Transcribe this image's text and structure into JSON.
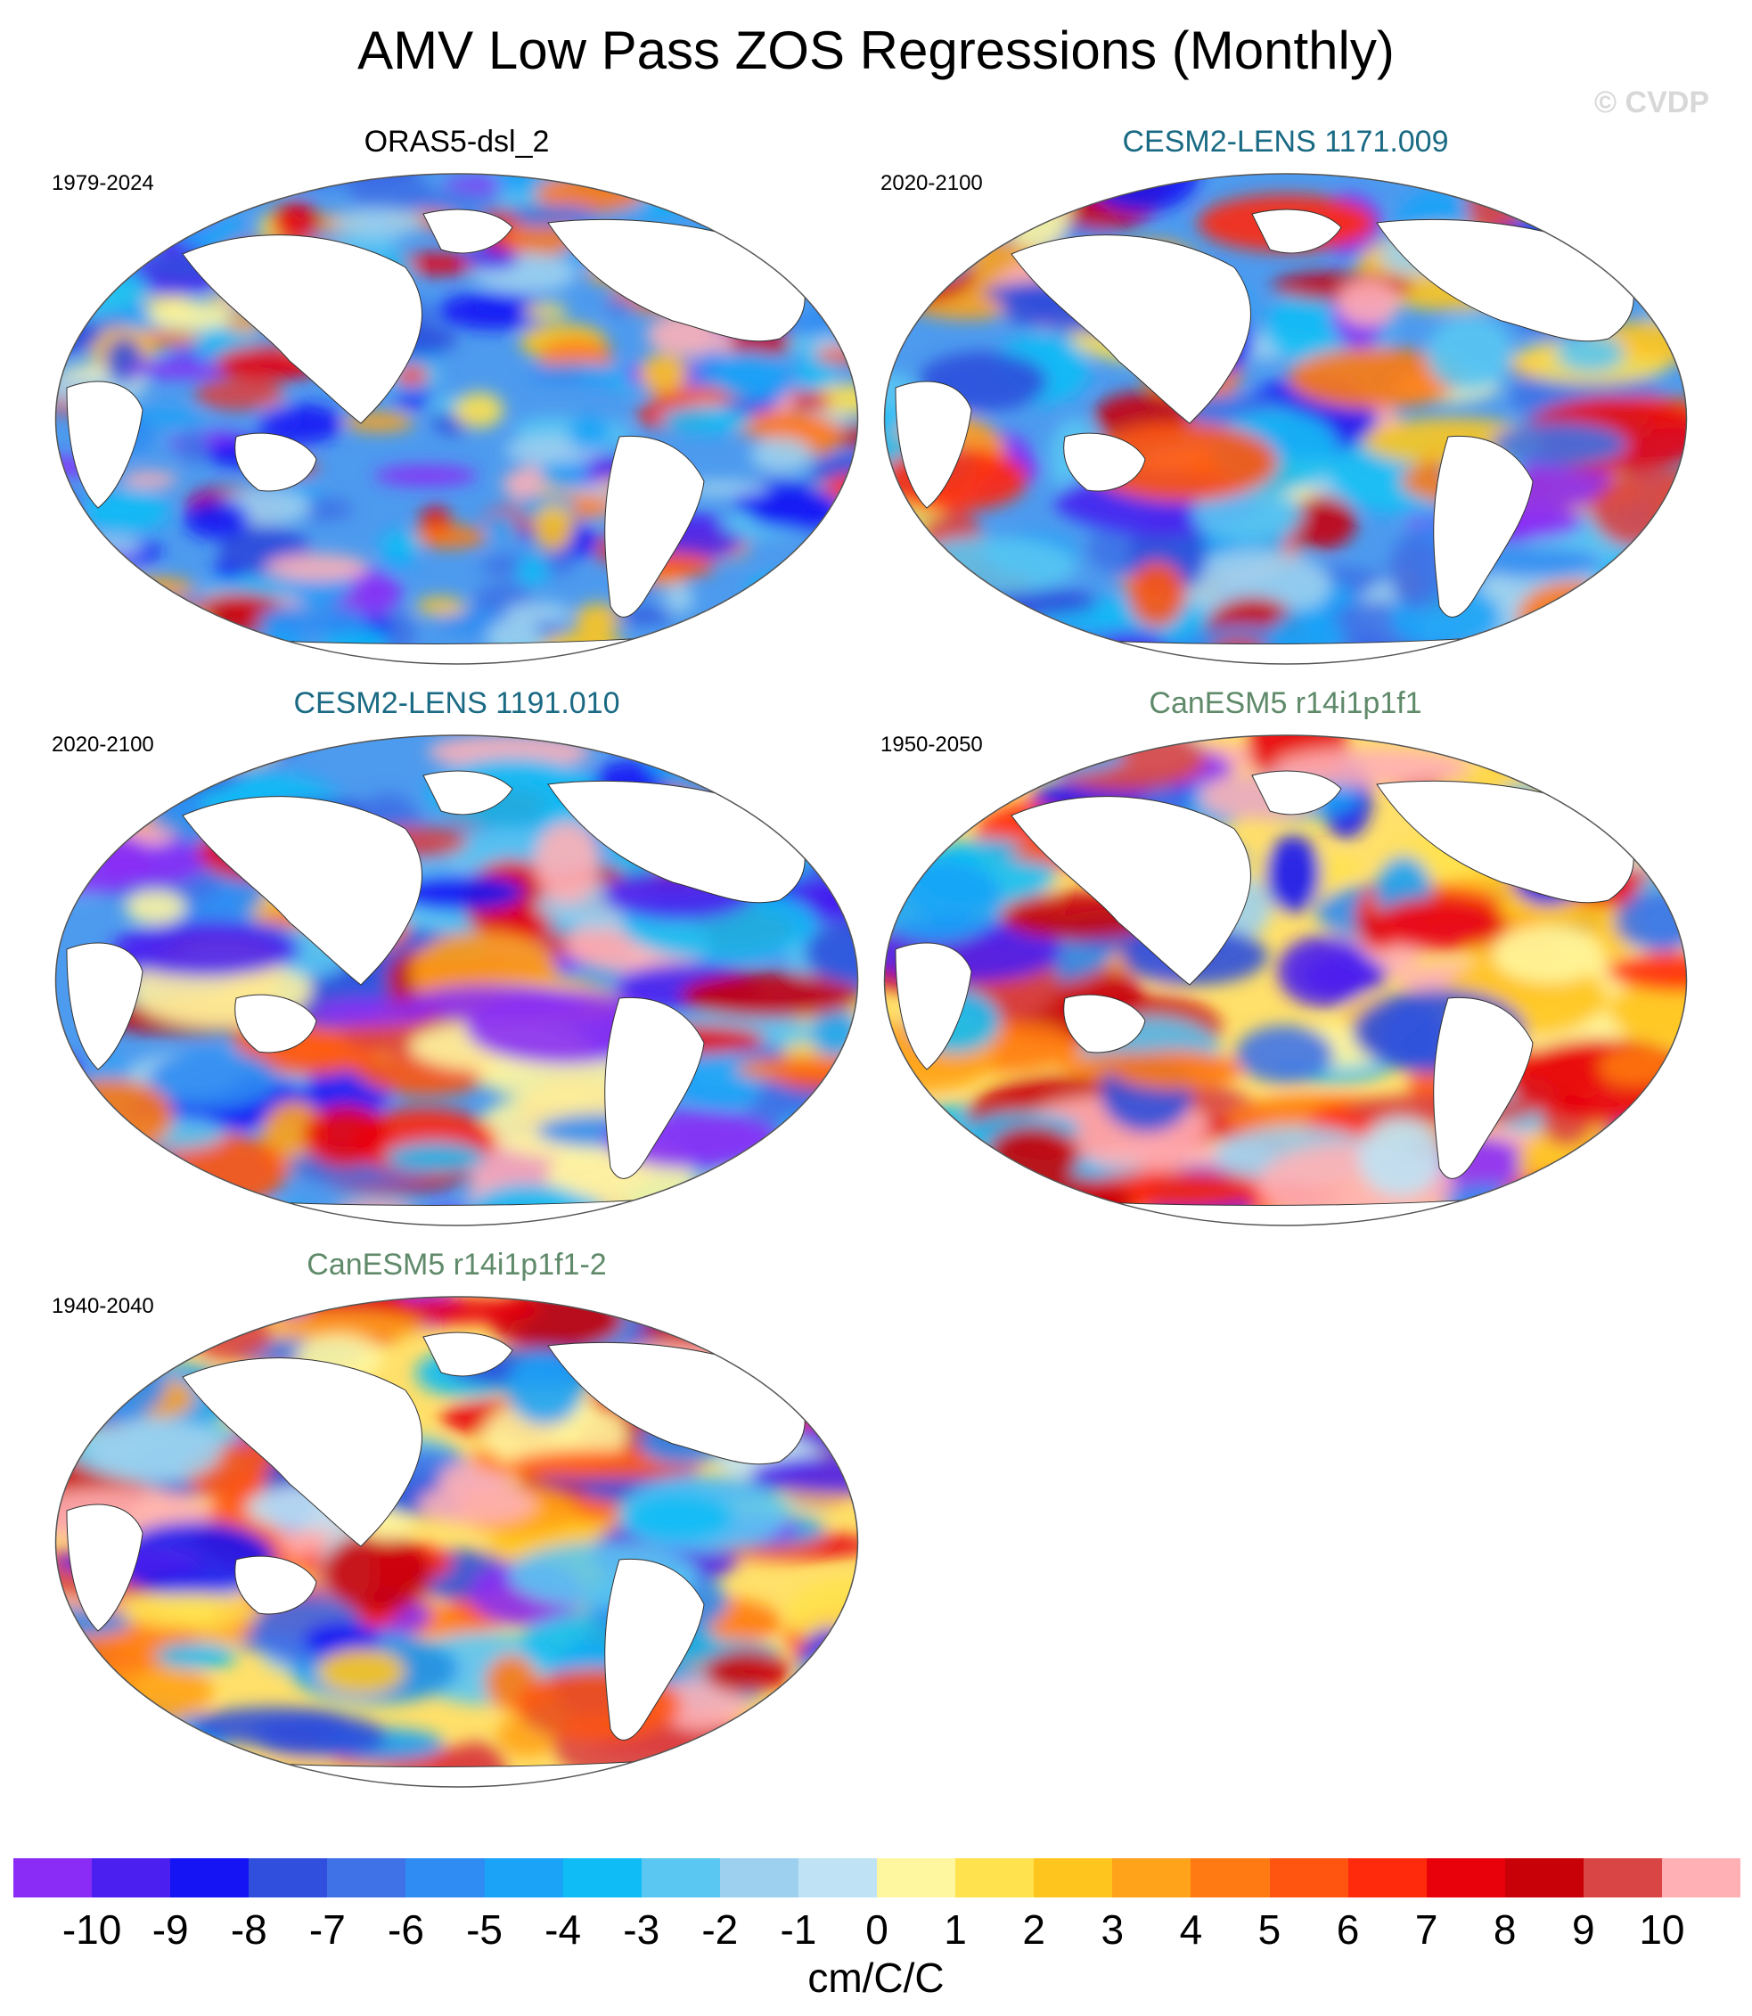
{
  "title": "AMV Low Pass ZOS Regressions (Monthly)",
  "copyright": "© CVDP",
  "panels": [
    {
      "name": "ORAS5-dsl_2",
      "years": "1979-2024",
      "color": "#000000"
    },
    {
      "name": "CESM2-LENS 1171.009",
      "years": "2020-2100",
      "color": "#1a6a84"
    },
    {
      "name": "CESM2-LENS 1191.010",
      "years": "2020-2100",
      "color": "#1a6a84"
    },
    {
      "name": "CanESM5 r14i1p1f1",
      "years": "1950-2050",
      "color": "#5f8a6a"
    },
    {
      "name": "CanESM5 r14i1p1f1-2",
      "years": "1940-2040",
      "color": "#5f8a6a"
    }
  ],
  "colorbar": {
    "colors": [
      "#8a2cf5",
      "#4b1ff0",
      "#1414f5",
      "#2f4fdc",
      "#3f72e6",
      "#2e8cf2",
      "#1aa3f7",
      "#0fbcf5",
      "#5ac6f2",
      "#9dd0ee",
      "#bfe2f4",
      "#fff7a0",
      "#ffe24d",
      "#ffc51f",
      "#ffa31a",
      "#ff7a12",
      "#ff5510",
      "#ff2a0c",
      "#e8000a",
      "#c80008",
      "#d94444",
      "#ffb0b5"
    ],
    "labels": [
      "-10",
      "-9",
      "-8",
      "-7",
      "-6",
      "-5",
      "-4",
      "-3",
      "-2",
      "-1",
      "0",
      "1",
      "2",
      "3",
      "4",
      "5",
      "6",
      "7",
      "8",
      "9",
      "10"
    ],
    "units": "cm/C/C"
  }
}
